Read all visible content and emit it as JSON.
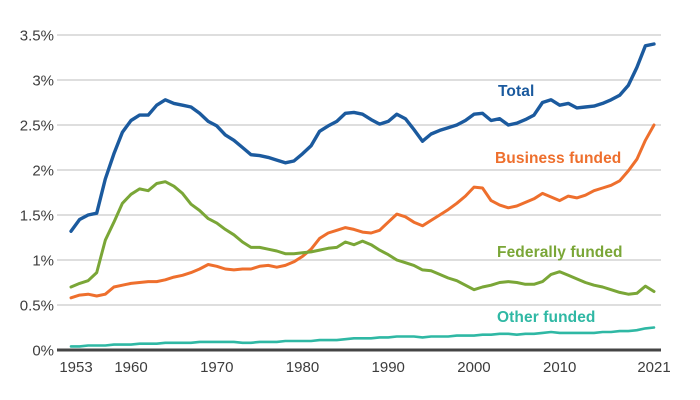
{
  "chart_data": {
    "type": "line",
    "title": "",
    "xlabel": "",
    "ylabel": "",
    "x_range": [
      1953,
      2021
    ],
    "y_range": [
      0,
      3.5
    ],
    "grid": "horizontal",
    "legend_position": "inline-labels",
    "y_ticks": [
      "0%",
      "0.5%",
      "1%",
      "1.5%",
      "2%",
      "2.5%",
      "3%",
      "3.5%"
    ],
    "y_tick_values": [
      0,
      0.5,
      1,
      1.5,
      2,
      2.5,
      3,
      3.5
    ],
    "x_ticks": [
      1953,
      1960,
      1970,
      1980,
      1990,
      2000,
      2010,
      2021
    ],
    "years": [
      1953,
      1954,
      1955,
      1956,
      1957,
      1958,
      1959,
      1960,
      1961,
      1962,
      1963,
      1964,
      1965,
      1966,
      1967,
      1968,
      1969,
      1970,
      1971,
      1972,
      1973,
      1974,
      1975,
      1976,
      1977,
      1978,
      1979,
      1980,
      1981,
      1982,
      1983,
      1984,
      1985,
      1986,
      1987,
      1988,
      1989,
      1990,
      1991,
      1992,
      1993,
      1994,
      1995,
      1996,
      1997,
      1998,
      1999,
      2000,
      2001,
      2002,
      2003,
      2004,
      2005,
      2006,
      2007,
      2008,
      2009,
      2010,
      2011,
      2012,
      2013,
      2014,
      2015,
      2016,
      2017,
      2018,
      2019,
      2020,
      2021
    ],
    "series": [
      {
        "name": "Total",
        "color": "#1B5A9E",
        "values": [
          1.32,
          1.45,
          1.5,
          1.52,
          1.9,
          2.18,
          2.42,
          2.55,
          2.61,
          2.61,
          2.72,
          2.78,
          2.74,
          2.72,
          2.7,
          2.63,
          2.54,
          2.49,
          2.39,
          2.33,
          2.25,
          2.17,
          2.16,
          2.14,
          2.11,
          2.08,
          2.1,
          2.18,
          2.27,
          2.43,
          2.49,
          2.54,
          2.63,
          2.64,
          2.62,
          2.56,
          2.51,
          2.54,
          2.62,
          2.57,
          2.45,
          2.32,
          2.4,
          2.44,
          2.47,
          2.5,
          2.55,
          2.62,
          2.63,
          2.55,
          2.57,
          2.5,
          2.52,
          2.56,
          2.61,
          2.75,
          2.78,
          2.72,
          2.74,
          2.69,
          2.7,
          2.71,
          2.74,
          2.78,
          2.83,
          2.94,
          3.14,
          3.38,
          3.4
        ]
      },
      {
        "name": "Business funded",
        "color": "#EE6F2D",
        "values": [
          0.58,
          0.61,
          0.62,
          0.6,
          0.62,
          0.7,
          0.72,
          0.74,
          0.75,
          0.76,
          0.76,
          0.78,
          0.81,
          0.83,
          0.86,
          0.9,
          0.95,
          0.93,
          0.9,
          0.89,
          0.9,
          0.9,
          0.93,
          0.94,
          0.92,
          0.94,
          0.98,
          1.04,
          1.12,
          1.24,
          1.3,
          1.33,
          1.36,
          1.34,
          1.31,
          1.3,
          1.33,
          1.42,
          1.51,
          1.48,
          1.42,
          1.38,
          1.44,
          1.5,
          1.56,
          1.63,
          1.71,
          1.81,
          1.8,
          1.66,
          1.61,
          1.58,
          1.6,
          1.64,
          1.68,
          1.74,
          1.7,
          1.66,
          1.71,
          1.69,
          1.72,
          1.77,
          1.8,
          1.83,
          1.88,
          1.99,
          2.12,
          2.33,
          2.5
        ]
      },
      {
        "name": "Federally funded",
        "color": "#7AA637",
        "values": [
          0.7,
          0.74,
          0.77,
          0.86,
          1.22,
          1.42,
          1.63,
          1.73,
          1.79,
          1.77,
          1.85,
          1.87,
          1.82,
          1.74,
          1.62,
          1.55,
          1.46,
          1.41,
          1.34,
          1.28,
          1.2,
          1.14,
          1.14,
          1.12,
          1.1,
          1.07,
          1.07,
          1.08,
          1.09,
          1.11,
          1.13,
          1.14,
          1.2,
          1.17,
          1.21,
          1.17,
          1.11,
          1.06,
          1.0,
          0.97,
          0.94,
          0.89,
          0.88,
          0.84,
          0.8,
          0.77,
          0.72,
          0.67,
          0.7,
          0.72,
          0.75,
          0.76,
          0.75,
          0.73,
          0.73,
          0.76,
          0.84,
          0.87,
          0.83,
          0.79,
          0.75,
          0.72,
          0.7,
          0.67,
          0.64,
          0.62,
          0.63,
          0.71,
          0.65
        ]
      },
      {
        "name": "Other funded",
        "color": "#2FB8A4",
        "values": [
          0.04,
          0.04,
          0.05,
          0.05,
          0.05,
          0.06,
          0.06,
          0.06,
          0.07,
          0.07,
          0.07,
          0.08,
          0.08,
          0.08,
          0.08,
          0.09,
          0.09,
          0.09,
          0.09,
          0.09,
          0.08,
          0.08,
          0.09,
          0.09,
          0.09,
          0.1,
          0.1,
          0.1,
          0.1,
          0.11,
          0.11,
          0.11,
          0.12,
          0.13,
          0.13,
          0.13,
          0.14,
          0.14,
          0.15,
          0.15,
          0.15,
          0.14,
          0.15,
          0.15,
          0.15,
          0.16,
          0.16,
          0.16,
          0.17,
          0.17,
          0.18,
          0.18,
          0.17,
          0.18,
          0.18,
          0.19,
          0.2,
          0.19,
          0.19,
          0.19,
          0.19,
          0.19,
          0.2,
          0.2,
          0.21,
          0.21,
          0.22,
          0.24,
          0.25
        ]
      }
    ],
    "colors": {
      "gridline": "#CBCBCB",
      "axis": "#454545",
      "tick_text": "#3D3D3D"
    }
  }
}
